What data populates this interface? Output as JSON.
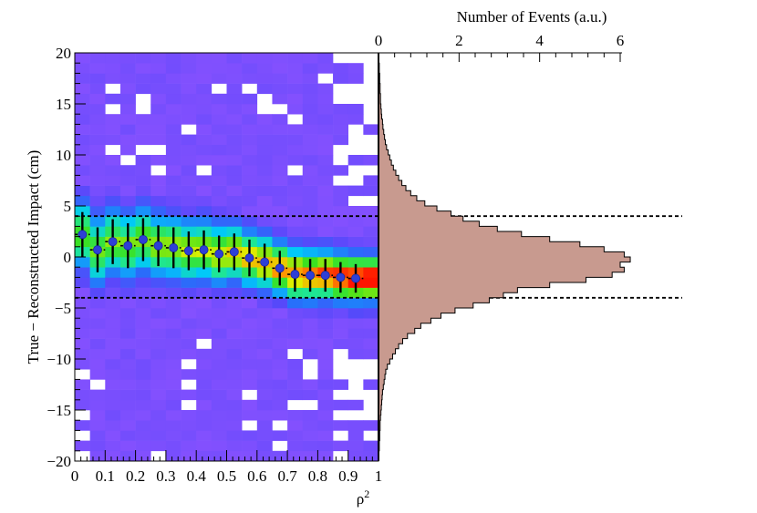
{
  "chart_data": [
    {
      "panel": "2d-histogram",
      "type": "heatmap",
      "xlabel": "ρ²",
      "ylabel": "True − Reconstructed Impact (cm)",
      "xlim": [
        0,
        1
      ],
      "ylim": [
        -20,
        20
      ],
      "x_bins": [
        0,
        0.05,
        0.1,
        0.15,
        0.2,
        0.25,
        0.3,
        0.35,
        0.4,
        0.45,
        0.5,
        0.55,
        0.6,
        0.65,
        0.7,
        0.75,
        0.8,
        0.85,
        0.9,
        0.95,
        1.0
      ],
      "xticks": [
        "0",
        "0.1",
        "0.2",
        "0.3",
        "0.4",
        "0.5",
        "0.6",
        "0.7",
        "0.8",
        "0.9",
        "1"
      ],
      "yticks": [
        "−20",
        "−15",
        "−10",
        "−5",
        "0",
        "5",
        "10",
        "15",
        "20"
      ],
      "grid": false,
      "colormap": "rainbow: purple (low) → blue → cyan → green → yellow → red (high)",
      "profile": {
        "x": [
          0.025,
          0.075,
          0.125,
          0.175,
          0.225,
          0.275,
          0.325,
          0.375,
          0.425,
          0.475,
          0.525,
          0.575,
          0.625,
          0.675,
          0.725,
          0.775,
          0.825,
          0.875,
          0.925
        ],
        "y": [
          2.2,
          0.7,
          1.5,
          1.1,
          1.7,
          1.1,
          0.9,
          0.6,
          0.7,
          0.3,
          0.5,
          -0.1,
          -0.5,
          -1.1,
          -1.7,
          -1.8,
          -1.8,
          -2.0,
          -2.1
        ],
        "yerr": [
          2.2,
          2.2,
          2.2,
          2.2,
          2.1,
          2.0,
          2.0,
          1.9,
          1.9,
          1.8,
          1.8,
          1.8,
          1.8,
          1.7,
          1.7,
          1.6,
          1.6,
          1.5,
          1.4
        ],
        "marker_color": "#2e3fd6"
      },
      "cut_lines_y": [
        4,
        -4
      ]
    },
    {
      "panel": "projection",
      "type": "bar",
      "orientation": "horizontal",
      "xlabel": "Number of Events (a.u.)",
      "xlim": [
        0,
        6.2
      ],
      "xticks": [
        "0",
        "2",
        "4",
        "6"
      ],
      "bin_width": 0.5,
      "bin_centers": [
        -18.75,
        -18.25,
        -17.75,
        -17.25,
        -16.75,
        -16.25,
        -15.75,
        -15.25,
        -14.75,
        -14.25,
        -13.75,
        -13.25,
        -12.75,
        -12.25,
        -11.75,
        -11.25,
        -10.75,
        -10.25,
        -9.75,
        -9.25,
        -8.75,
        -8.25,
        -7.75,
        -7.25,
        -6.75,
        -6.25,
        -5.75,
        -5.25,
        -4.75,
        -4.25,
        -3.75,
        -3.25,
        -2.75,
        -2.25,
        -1.75,
        -1.25,
        -0.75,
        -0.25,
        0.25,
        0.75,
        1.25,
        1.75,
        2.25,
        2.75,
        3.25,
        3.75,
        4.25,
        4.75,
        5.25,
        5.75,
        6.25,
        6.75,
        7.25,
        7.75,
        8.25,
        8.75,
        9.25,
        9.75,
        10.25,
        10.75,
        11.25,
        11.75,
        12.25,
        12.75,
        13.25,
        13.75,
        14.25,
        14.75,
        15.25,
        15.75,
        16.25,
        16.75,
        17.25,
        17.75,
        18.25,
        18.75
      ],
      "values": [
        0.02,
        0.02,
        0.03,
        0.03,
        0.04,
        0.04,
        0.05,
        0.06,
        0.07,
        0.08,
        0.09,
        0.1,
        0.12,
        0.14,
        0.16,
        0.18,
        0.22,
        0.28,
        0.35,
        0.42,
        0.5,
        0.6,
        0.72,
        0.9,
        1.05,
        1.3,
        1.55,
        1.9,
        2.35,
        2.75,
        3.1,
        3.45,
        4.25,
        5.15,
        5.8,
        6.1,
        6.0,
        6.25,
        6.1,
        5.6,
        5.0,
        4.25,
        3.55,
        2.95,
        2.5,
        2.1,
        1.8,
        1.45,
        1.15,
        0.95,
        0.8,
        0.68,
        0.58,
        0.5,
        0.43,
        0.37,
        0.32,
        0.28,
        0.24,
        0.2,
        0.17,
        0.15,
        0.13,
        0.11,
        0.1,
        0.08,
        0.07,
        0.06,
        0.05,
        0.05,
        0.04,
        0.04,
        0.03,
        0.03,
        0.02,
        0.02
      ],
      "fill": "#c89a8f"
    }
  ]
}
